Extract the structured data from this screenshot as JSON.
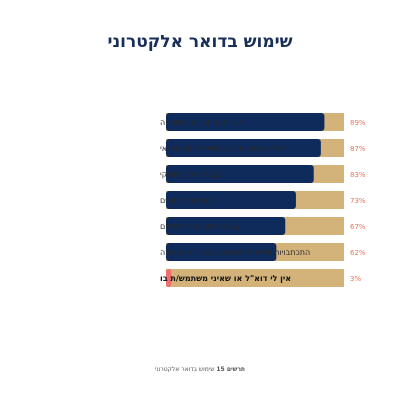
{
  "chart_data": {
    "type": "bar",
    "orientation": "horizontal",
    "title": "שימוש בדואר אלקטרוני",
    "categories": [
      "קשר עם חברים ומשפחה",
      "קבלת מידע ותוכן בנושא תרבות ופנאי",
      "קבלת מידע שיווקי",
      "למטרות לימודים",
      "קבלת חשבונות לתשלום",
      "התכתבויות ושליחת חומרים במסגרת העבודה",
      "אין לי דוא\"ל או שאיני משתמש/ת בו"
    ],
    "values": [
      89,
      87,
      83,
      73,
      67,
      62,
      3
    ],
    "value_labels": [
      "89%",
      "87%",
      "83%",
      "73%",
      "67%",
      "62%",
      "3%"
    ],
    "xlim": [
      0,
      100
    ],
    "grid": false,
    "legend": "none",
    "colors": {
      "bar": "#0f2b5c",
      "bar_highlight": "#f26d6d",
      "track": "#d4b37a",
      "value_label": "#e8745b",
      "title": "#1a2f57"
    },
    "highlight_index": 6
  },
  "footnote": {
    "bold": "תרשים 15",
    "text": "שימוש בדואר אלקטרוני"
  }
}
